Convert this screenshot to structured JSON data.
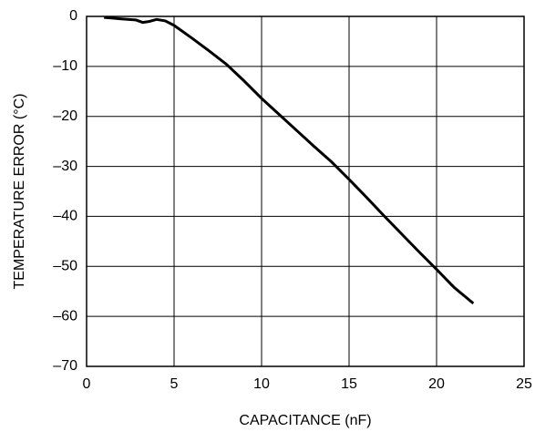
{
  "chart_data": {
    "type": "line",
    "x_label": "CAPACITANCE (nF)",
    "y_label": "TEMPERATURE ERROR (°C)",
    "x": [
      1,
      2,
      2.8,
      3.2,
      3.6,
      4,
      4.5,
      5,
      6,
      7,
      8,
      9,
      10,
      11,
      12,
      13,
      14,
      15,
      16,
      17,
      18,
      19,
      20,
      21,
      22.1
    ],
    "series": [
      {
        "color": "#000000",
        "values": [
          -0.2,
          -0.5,
          -0.7,
          -1.2,
          -1.0,
          -0.6,
          -0.9,
          -1.8,
          -4.3,
          -6.9,
          -9.6,
          -12.9,
          -16.4,
          -19.6,
          -22.8,
          -26,
          -29.1,
          -32.6,
          -36.2,
          -39.9,
          -43.5,
          -47.1,
          -50.6,
          -54.2,
          -57.4
        ]
      }
    ],
    "xlim": [
      0,
      25
    ],
    "xticks": [
      0,
      5,
      10,
      15,
      20,
      25
    ],
    "ylim": [
      -70,
      0
    ],
    "yticks": [
      0,
      {
        "value": -10,
        "label": "–10"
      },
      {
        "value": -20,
        "label": "–20"
      },
      {
        "value": -30,
        "label": "–30"
      },
      {
        "value": -40,
        "label": "–40"
      },
      {
        "value": -50,
        "label": "–50"
      },
      {
        "value": -60,
        "label": "–60"
      },
      {
        "value": -70,
        "label": "–70"
      }
    ],
    "grid": true
  }
}
